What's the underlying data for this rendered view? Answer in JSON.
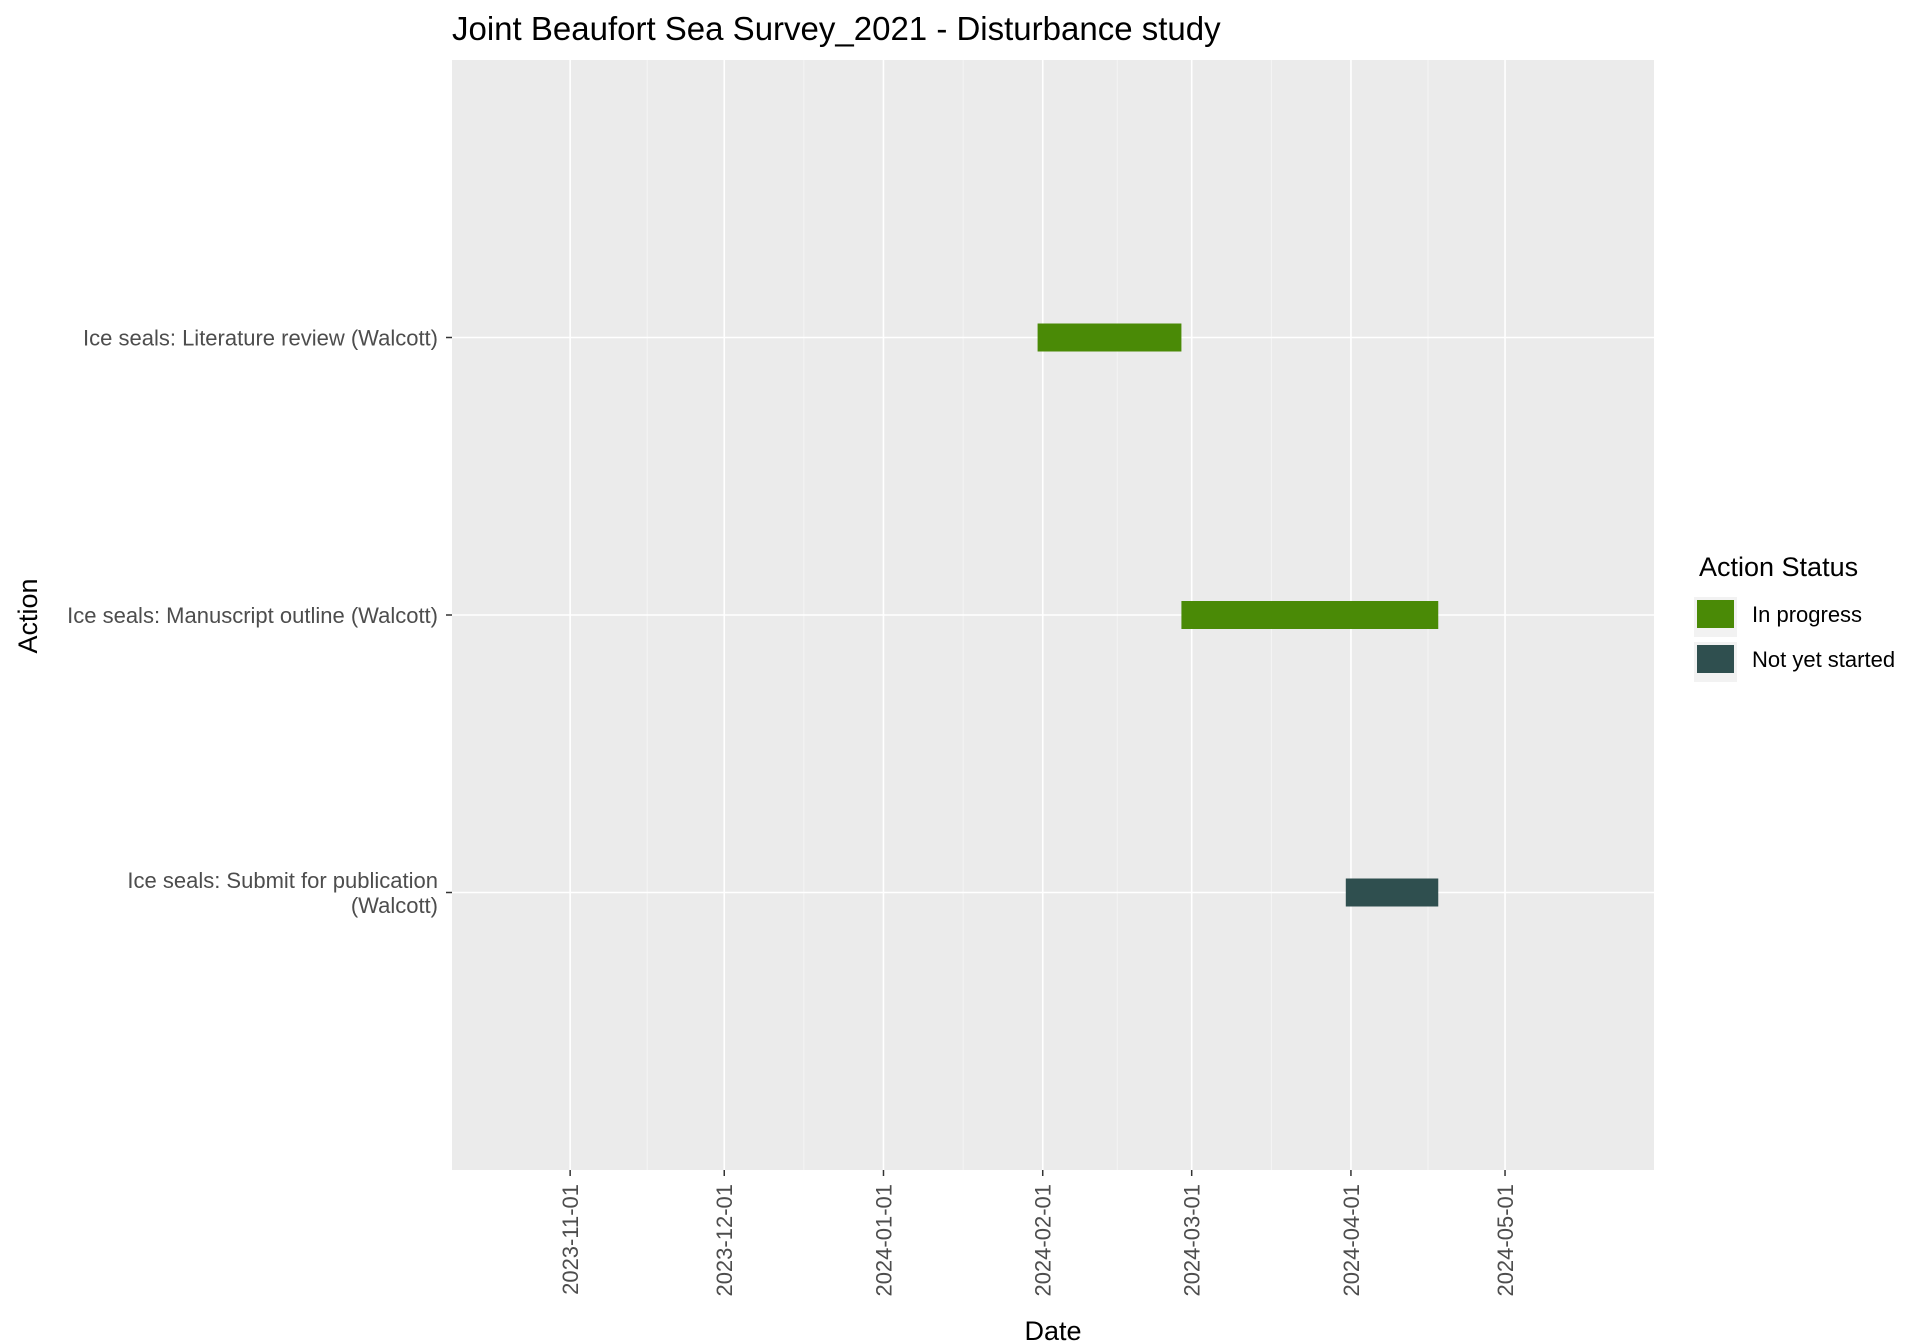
{
  "chart_data": {
    "type": "bar",
    "orientation": "horizontal-gantt",
    "title": "Joint Beaufort Sea Survey_2021  - Disturbance study",
    "xlabel": "Date",
    "ylabel": "Action",
    "x_ticks": [
      "2023-11-01",
      "2023-12-01",
      "2024-01-01",
      "2024-02-01",
      "2024-03-01",
      "2024-04-01",
      "2024-05-01"
    ],
    "xlim": [
      "2023-10-09",
      "2024-05-30"
    ],
    "grid": true,
    "legend": {
      "title": "Action Status",
      "position": "right",
      "entries": [
        {
          "label": "In progress",
          "color": "#4a8a06"
        },
        {
          "label": "Not yet started",
          "color": "#2f4f4f"
        }
      ]
    },
    "tasks": [
      {
        "label_lines": [
          "Ice seals: Literature review (Walcott)"
        ],
        "start": "2024-01-31",
        "end": "2024-02-28",
        "status": "In progress"
      },
      {
        "label_lines": [
          "Ice seals: Manuscript outline (Walcott)"
        ],
        "start": "2024-02-28",
        "end": "2024-04-18",
        "status": "In progress"
      },
      {
        "label_lines": [
          "Ice seals: Submit for publication",
          "(Walcott)"
        ],
        "start": "2024-03-31",
        "end": "2024-04-18",
        "status": "Not yet started"
      }
    ],
    "colors": {
      "panel": "#ebebeb",
      "grid": "#ffffff",
      "tick_text": "#4d4d4d",
      "tick_mark": "#333333"
    }
  }
}
